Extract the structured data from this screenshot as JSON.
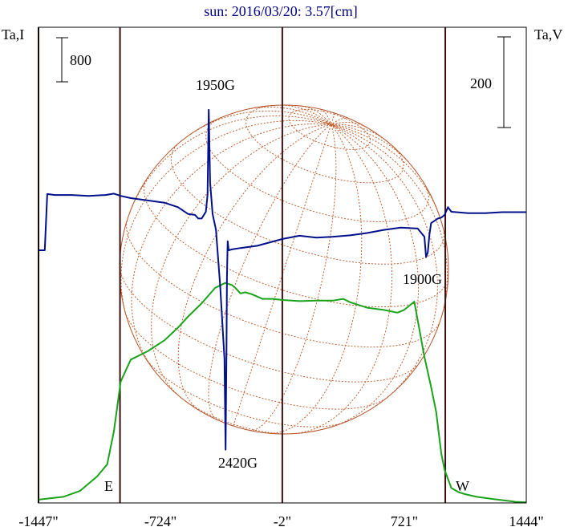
{
  "chart_data": {
    "type": "line",
    "title": "sun: 2016/03/20: 3.57[cm]",
    "left_axis_label": "Ta,I",
    "right_axis_label": "Ta,V",
    "left_scale_bar": {
      "value": 800,
      "label": "800"
    },
    "right_scale_bar": {
      "value": 200,
      "label": "200"
    },
    "x_ticks": [
      -1447,
      -724,
      -2,
      721,
      1444
    ],
    "x_tick_labels": [
      "-1447\"",
      "-724\"",
      "-2\"",
      "721\"",
      "1444\""
    ],
    "vertical_lines": [
      -1447,
      -964,
      -2,
      964
    ],
    "limb_labels": {
      "east": "E",
      "west": "W"
    },
    "xlim": [
      -1447,
      1444
    ],
    "series": [
      {
        "name": "I",
        "color": "#1aa31a",
        "x": [
          -1447,
          -1300,
          -1200,
          -1100,
          -1040,
          -1000,
          -960,
          -900,
          -800,
          -700,
          -620,
          -560,
          -480,
          -400,
          -340,
          -300,
          -280,
          -250,
          -220,
          -180,
          -120,
          -60,
          0,
          100,
          200,
          300,
          360,
          400,
          500,
          600,
          680,
          720,
          780,
          840,
          880,
          910,
          940,
          960,
          1000,
          1040,
          1080,
          1150,
          1250,
          1380,
          1444
        ],
        "y": [
          60,
          110,
          220,
          480,
          700,
          1300,
          2200,
          2600,
          2750,
          2950,
          3180,
          3380,
          3620,
          3900,
          3990,
          3950,
          3900,
          3800,
          3820,
          3780,
          3700,
          3700,
          3680,
          3660,
          3670,
          3670,
          3700,
          3640,
          3540,
          3500,
          3450,
          3500,
          3650,
          2650,
          2100,
          1650,
          900,
          600,
          270,
          200,
          160,
          110,
          70,
          20,
          10
        ]
      },
      {
        "name": "V",
        "color": "#00108a",
        "x": [
          -1447,
          -1410,
          -1395,
          -1350,
          -1250,
          -1150,
          -1050,
          -1000,
          -960,
          -900,
          -800,
          -700,
          -620,
          -560,
          -520,
          -500,
          -480,
          -455,
          -445,
          -438,
          -430,
          -415,
          -395,
          -370,
          -345,
          -338,
          -333,
          -330,
          -326,
          -320,
          -300,
          -250,
          -150,
          0,
          100,
          200,
          300,
          400,
          500,
          600,
          700,
          800,
          840,
          850,
          860,
          870,
          880,
          900,
          920,
          940,
          960,
          980,
          1000,
          1100,
          1200,
          1300,
          1444
        ],
        "y": [
          0,
          0,
          124,
          122,
          122,
          120,
          122,
          125,
          120,
          115,
          110,
          105,
          95,
          80,
          78,
          70,
          70,
          85,
          122,
          310,
          150,
          80,
          45,
          -80,
          -240,
          -440,
          -220,
          -60,
          20,
          0,
          2,
          5,
          10,
          25,
          32,
          28,
          30,
          33,
          38,
          45,
          50,
          48,
          30,
          -15,
          -5,
          35,
          60,
          65,
          70,
          72,
          78,
          95,
          85,
          82,
          82,
          84,
          84
        ]
      }
    ],
    "annotations": [
      {
        "text": "1950G"
      },
      {
        "text": "2420G"
      },
      {
        "text": "1900G"
      }
    ],
    "colors": {
      "title": "#000080",
      "frame": "#000000",
      "vertical_lines": "#3a1010",
      "disk": "#b5532a",
      "grid": "#c06030"
    }
  }
}
